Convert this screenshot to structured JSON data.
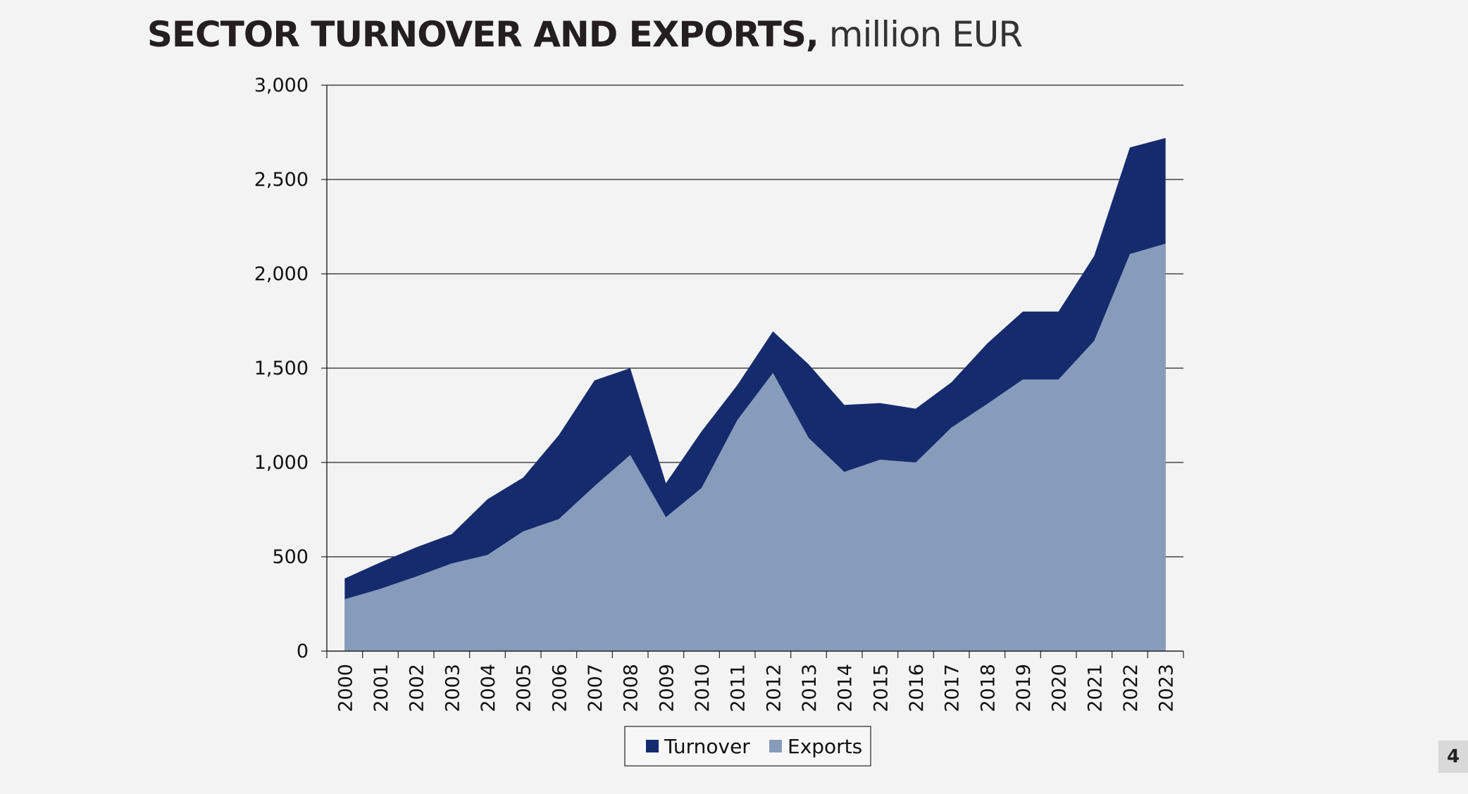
{
  "title": {
    "bold": "SECTOR TURNOVER AND EXPORTS,",
    "light": " million EUR"
  },
  "page_number": "4",
  "colors": {
    "turnover": "#152b6e",
    "exports": "#879cbb",
    "background": "#f3f3f3"
  },
  "chart_data": {
    "type": "area",
    "title": "SECTOR TURNOVER AND EXPORTS, million EUR",
    "xlabel": "",
    "ylabel": "",
    "ylim": [
      0,
      3000
    ],
    "yticks": [
      0,
      500,
      1000,
      1500,
      2000,
      2500,
      3000
    ],
    "ytick_labels": [
      "0",
      "500",
      "1,000",
      "1,500",
      "2,000",
      "2,500",
      "3,000"
    ],
    "grid": true,
    "legend": "bottom",
    "categories": [
      "2000",
      "2001",
      "2002",
      "2003",
      "2004",
      "2005",
      "2006",
      "2007",
      "2008",
      "2009",
      "2010",
      "2011",
      "2012",
      "2013",
      "2014",
      "2015",
      "2016",
      "2017",
      "2018",
      "2019",
      "2020",
      "2021",
      "2022",
      "2023"
    ],
    "series": [
      {
        "name": "Turnover",
        "color": "#152b6e",
        "values": [
          385,
          470,
          550,
          620,
          805,
          920,
          1145,
          1435,
          1500,
          890,
          1165,
          1410,
          1695,
          1520,
          1305,
          1315,
          1285,
          1425,
          1630,
          1800,
          1800,
          2095,
          2670,
          2720
        ]
      },
      {
        "name": "Exports",
        "color": "#879cbb",
        "values": [
          275,
          330,
          395,
          465,
          510,
          635,
          700,
          875,
          1040,
          710,
          865,
          1225,
          1475,
          1130,
          950,
          1015,
          1000,
          1185,
          1310,
          1440,
          1440,
          1645,
          2105,
          2160
        ]
      }
    ]
  }
}
